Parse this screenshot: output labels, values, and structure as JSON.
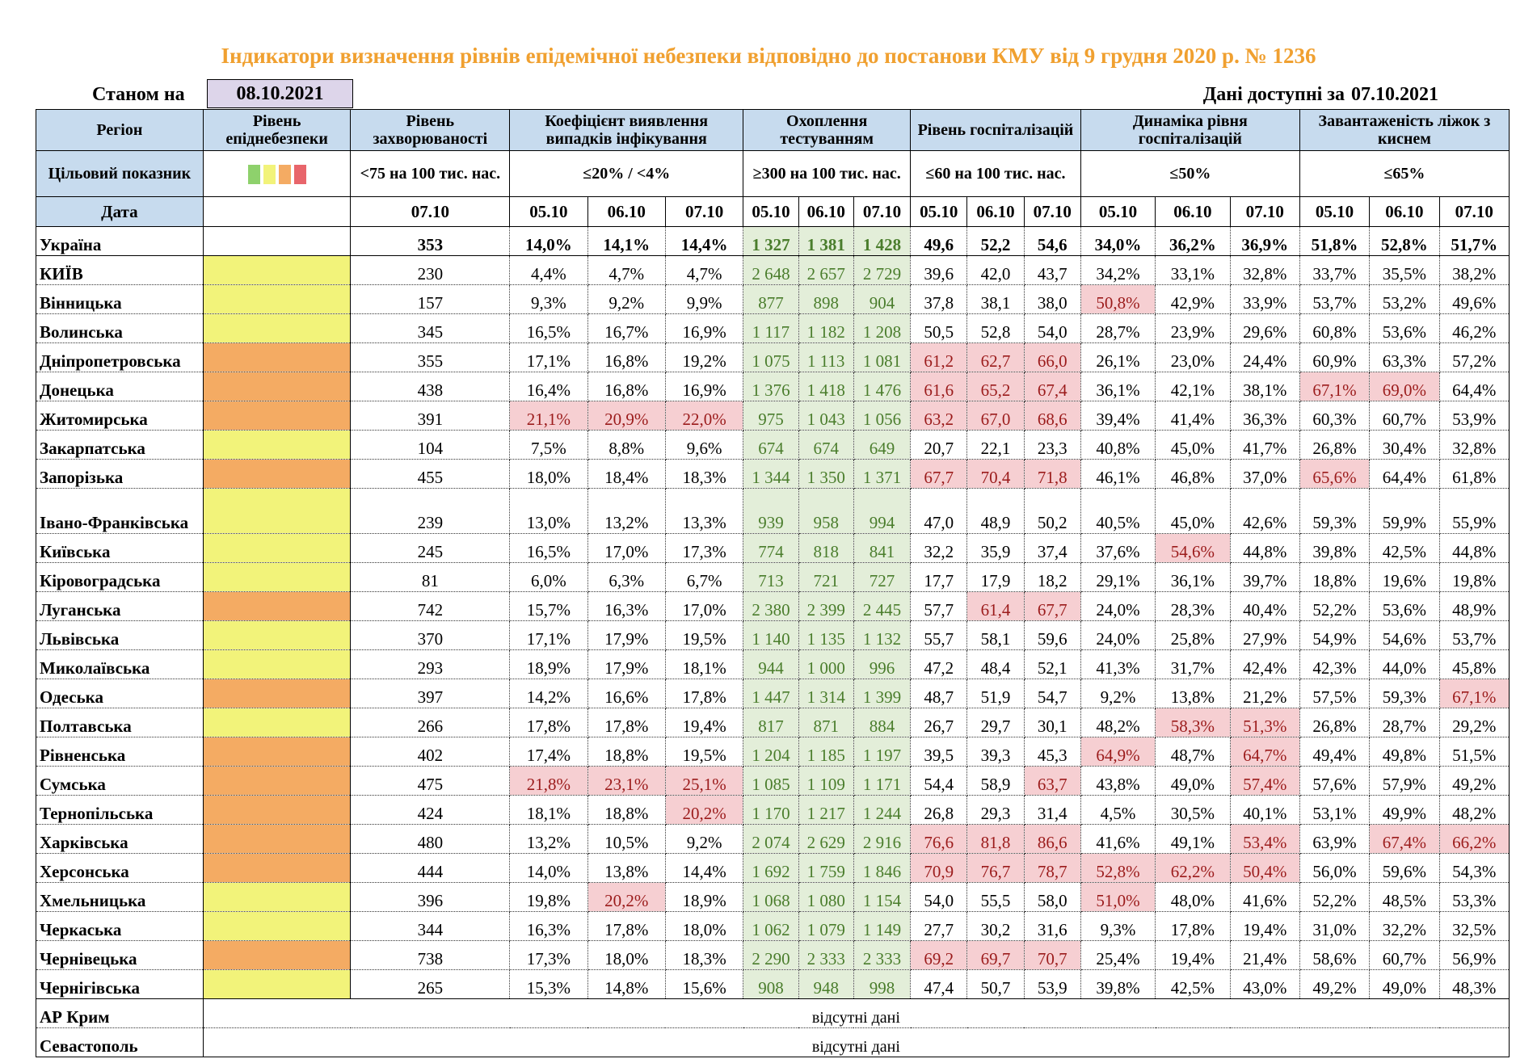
{
  "title": "Індикатори визначення рівнів епідемічної небезпеки відповідно до постанови КМУ від 9 грудня 2020 р. № 1236",
  "as_of_label": "Станом на",
  "as_of_date": "08.10.2021",
  "available_label": "Дані доступні за",
  "available_date": "07.10.2021",
  "headers": {
    "region": "Регіон",
    "level": "Рівень епіднебезпеки",
    "incidence": "Рівень захворюваності",
    "detection": "Коефіцієнт виявлення випадків інфікування",
    "testing": "Охоплення тестуванням",
    "hosp": "Рівень госпіталізацій",
    "hosp_dyn": "Динаміка рівня госпіталізацій",
    "oxygen": "Завантаженість ліжок з киснем"
  },
  "target_row": {
    "label": "Цільовий показник",
    "incidence": "<75 на 100 тис. нас.",
    "detection": "≤20% / <4%",
    "testing": "≥300 на 100 тис. нас.",
    "hosp": "≤60 на 100 тис. нас.",
    "hosp_dyn": "≤50%",
    "oxygen": "≤65%"
  },
  "legend_colors": [
    "#8ed16c",
    "#f2f37a",
    "#f4ab63",
    "#e8656b"
  ],
  "date_row": {
    "label": "Дата",
    "incidence": "07.10",
    "dates": [
      "05.10",
      "06.10",
      "07.10"
    ]
  },
  "ukraine": {
    "name": "Україна",
    "incidence": "353",
    "detection": [
      "14,0%",
      "14,1%",
      "14,4%"
    ],
    "testing": [
      "1 327",
      "1 381",
      "1 428"
    ],
    "hosp": [
      "49,6",
      "52,2",
      "54,6"
    ],
    "hosp_dyn": [
      "34,0%",
      "36,2%",
      "36,9%"
    ],
    "oxygen": [
      "51,8%",
      "52,8%",
      "51,7%"
    ]
  },
  "regions": [
    {
      "name": "КИЇВ",
      "level": "yellow",
      "incidence": "230",
      "detection": [
        "4,4%",
        "4,7%",
        "4,7%"
      ],
      "testing": [
        "2 648",
        "2 657",
        "2 729"
      ],
      "hosp": [
        "39,6",
        "42,0",
        "43,7"
      ],
      "hosp_dyn": [
        "34,2%",
        "33,1%",
        "32,8%"
      ],
      "oxygen": [
        "33,7%",
        "35,5%",
        "38,2%"
      ],
      "red": []
    },
    {
      "name": "Вінницька",
      "level": "yellow",
      "incidence": "157",
      "detection": [
        "9,3%",
        "9,2%",
        "9,9%"
      ],
      "testing": [
        "877",
        "898",
        "904"
      ],
      "hosp": [
        "37,8",
        "38,1",
        "38,0"
      ],
      "hosp_dyn": [
        "50,8%",
        "42,9%",
        "33,9%"
      ],
      "oxygen": [
        "53,7%",
        "53,2%",
        "49,6%"
      ],
      "red": [
        "hosp_dyn.0"
      ]
    },
    {
      "name": "Волинська",
      "level": "yellow",
      "incidence": "345",
      "detection": [
        "16,5%",
        "16,7%",
        "16,9%"
      ],
      "testing": [
        "1 117",
        "1 182",
        "1 208"
      ],
      "hosp": [
        "50,5",
        "52,8",
        "54,0"
      ],
      "hosp_dyn": [
        "28,7%",
        "23,9%",
        "29,6%"
      ],
      "oxygen": [
        "60,8%",
        "53,6%",
        "46,2%"
      ],
      "red": []
    },
    {
      "name": "Дніпропетровська",
      "level": "orange",
      "incidence": "355",
      "detection": [
        "17,1%",
        "16,8%",
        "19,2%"
      ],
      "testing": [
        "1 075",
        "1 113",
        "1 081"
      ],
      "hosp": [
        "61,2",
        "62,7",
        "66,0"
      ],
      "hosp_dyn": [
        "26,1%",
        "23,0%",
        "24,4%"
      ],
      "oxygen": [
        "60,9%",
        "63,3%",
        "57,2%"
      ],
      "red": [
        "hosp.0",
        "hosp.1",
        "hosp.2"
      ]
    },
    {
      "name": "Донецька",
      "level": "orange",
      "incidence": "438",
      "detection": [
        "16,4%",
        "16,8%",
        "16,9%"
      ],
      "testing": [
        "1 376",
        "1 418",
        "1 476"
      ],
      "hosp": [
        "61,6",
        "65,2",
        "67,4"
      ],
      "hosp_dyn": [
        "36,1%",
        "42,1%",
        "38,1%"
      ],
      "oxygen": [
        "67,1%",
        "69,0%",
        "64,4%"
      ],
      "red": [
        "hosp.0",
        "hosp.1",
        "hosp.2",
        "oxygen.0",
        "oxygen.1"
      ]
    },
    {
      "name": "Житомирська",
      "level": "orange",
      "incidence": "391",
      "detection": [
        "21,1%",
        "20,9%",
        "22,0%"
      ],
      "testing": [
        "975",
        "1 043",
        "1 056"
      ],
      "hosp": [
        "63,2",
        "67,0",
        "68,6"
      ],
      "hosp_dyn": [
        "39,4%",
        "41,4%",
        "36,3%"
      ],
      "oxygen": [
        "60,3%",
        "60,7%",
        "53,9%"
      ],
      "red": [
        "detection.0",
        "detection.1",
        "detection.2",
        "hosp.0",
        "hosp.1",
        "hosp.2"
      ]
    },
    {
      "name": "Закарпатська",
      "level": "yellow",
      "incidence": "104",
      "detection": [
        "7,5%",
        "8,8%",
        "9,6%"
      ],
      "testing": [
        "674",
        "674",
        "649"
      ],
      "hosp": [
        "20,7",
        "22,1",
        "23,3"
      ],
      "hosp_dyn": [
        "40,8%",
        "45,0%",
        "41,7%"
      ],
      "oxygen": [
        "26,8%",
        "30,4%",
        "32,8%"
      ],
      "red": []
    },
    {
      "name": "Запорізька",
      "level": "orange",
      "incidence": "455",
      "detection": [
        "18,0%",
        "18,4%",
        "18,3%"
      ],
      "testing": [
        "1 344",
        "1 350",
        "1 371"
      ],
      "hosp": [
        "67,7",
        "70,4",
        "71,8"
      ],
      "hosp_dyn": [
        "46,1%",
        "46,8%",
        "37,0%"
      ],
      "oxygen": [
        "65,6%",
        "64,4%",
        "61,8%"
      ],
      "red": [
        "hosp.0",
        "hosp.1",
        "hosp.2",
        "oxygen.0"
      ]
    },
    {
      "name": "Івано-Франківська",
      "level": "yellow",
      "incidence": "239",
      "detection": [
        "13,0%",
        "13,2%",
        "13,3%"
      ],
      "testing": [
        "939",
        "958",
        "994"
      ],
      "hosp": [
        "47,0",
        "48,9",
        "50,2"
      ],
      "hosp_dyn": [
        "40,5%",
        "45,0%",
        "42,6%"
      ],
      "oxygen": [
        "59,3%",
        "59,9%",
        "55,9%"
      ],
      "red": [],
      "tall": true
    },
    {
      "name": "Київська",
      "level": "yellow",
      "incidence": "245",
      "detection": [
        "16,5%",
        "17,0%",
        "17,3%"
      ],
      "testing": [
        "774",
        "818",
        "841"
      ],
      "hosp": [
        "32,2",
        "35,9",
        "37,4"
      ],
      "hosp_dyn": [
        "37,6%",
        "54,6%",
        "44,8%"
      ],
      "oxygen": [
        "39,8%",
        "42,5%",
        "44,8%"
      ],
      "red": [
        "hosp_dyn.1"
      ]
    },
    {
      "name": "Кіровоградська",
      "level": "yellow",
      "incidence": "81",
      "detection": [
        "6,0%",
        "6,3%",
        "6,7%"
      ],
      "testing": [
        "713",
        "721",
        "727"
      ],
      "hosp": [
        "17,7",
        "17,9",
        "18,2"
      ],
      "hosp_dyn": [
        "29,1%",
        "36,1%",
        "39,7%"
      ],
      "oxygen": [
        "18,8%",
        "19,6%",
        "19,8%"
      ],
      "red": []
    },
    {
      "name": "Луганська",
      "level": "orange",
      "incidence": "742",
      "detection": [
        "15,7%",
        "16,3%",
        "17,0%"
      ],
      "testing": [
        "2 380",
        "2 399",
        "2 445"
      ],
      "hosp": [
        "57,7",
        "61,4",
        "67,7"
      ],
      "hosp_dyn": [
        "24,0%",
        "28,3%",
        "40,4%"
      ],
      "oxygen": [
        "52,2%",
        "53,6%",
        "48,9%"
      ],
      "red": [
        "hosp.1",
        "hosp.2"
      ]
    },
    {
      "name": "Львівська",
      "level": "yellow",
      "incidence": "370",
      "detection": [
        "17,1%",
        "17,9%",
        "19,5%"
      ],
      "testing": [
        "1 140",
        "1 135",
        "1 132"
      ],
      "hosp": [
        "55,7",
        "58,1",
        "59,6"
      ],
      "hosp_dyn": [
        "24,0%",
        "25,8%",
        "27,9%"
      ],
      "oxygen": [
        "54,9%",
        "54,6%",
        "53,7%"
      ],
      "red": []
    },
    {
      "name": "Миколаївська",
      "level": "yellow",
      "incidence": "293",
      "detection": [
        "18,9%",
        "17,9%",
        "18,1%"
      ],
      "testing": [
        "944",
        "1 000",
        "996"
      ],
      "hosp": [
        "47,2",
        "48,4",
        "52,1"
      ],
      "hosp_dyn": [
        "41,3%",
        "31,7%",
        "42,4%"
      ],
      "oxygen": [
        "42,3%",
        "44,0%",
        "45,8%"
      ],
      "red": []
    },
    {
      "name": "Одеська",
      "level": "orange",
      "incidence": "397",
      "detection": [
        "14,2%",
        "16,6%",
        "17,8%"
      ],
      "testing": [
        "1 447",
        "1 314",
        "1 399"
      ],
      "hosp": [
        "48,7",
        "51,9",
        "54,7"
      ],
      "hosp_dyn": [
        "9,2%",
        "13,8%",
        "21,2%"
      ],
      "oxygen": [
        "57,5%",
        "59,3%",
        "67,1%"
      ],
      "red": [
        "oxygen.2"
      ]
    },
    {
      "name": "Полтавська",
      "level": "yellow",
      "incidence": "266",
      "detection": [
        "17,8%",
        "17,8%",
        "19,4%"
      ],
      "testing": [
        "817",
        "871",
        "884"
      ],
      "hosp": [
        "26,7",
        "29,7",
        "30,1"
      ],
      "hosp_dyn": [
        "48,2%",
        "58,3%",
        "51,3%"
      ],
      "oxygen": [
        "26,8%",
        "28,7%",
        "29,2%"
      ],
      "red": [
        "hosp_dyn.1",
        "hosp_dyn.2"
      ]
    },
    {
      "name": "Рівненська",
      "level": "orange",
      "incidence": "402",
      "detection": [
        "17,4%",
        "18,8%",
        "19,5%"
      ],
      "testing": [
        "1 204",
        "1 185",
        "1 197"
      ],
      "hosp": [
        "39,5",
        "39,3",
        "45,3"
      ],
      "hosp_dyn": [
        "64,9%",
        "48,7%",
        "64,7%"
      ],
      "oxygen": [
        "49,4%",
        "49,8%",
        "51,5%"
      ],
      "red": [
        "hosp_dyn.0",
        "hosp_dyn.2"
      ]
    },
    {
      "name": "Сумська",
      "level": "orange",
      "incidence": "475",
      "detection": [
        "21,8%",
        "23,1%",
        "25,1%"
      ],
      "testing": [
        "1 085",
        "1 109",
        "1 171"
      ],
      "hosp": [
        "54,4",
        "58,9",
        "63,7"
      ],
      "hosp_dyn": [
        "43,8%",
        "49,0%",
        "57,4%"
      ],
      "oxygen": [
        "57,6%",
        "57,9%",
        "49,2%"
      ],
      "red": [
        "detection.0",
        "detection.1",
        "detection.2",
        "hosp.2",
        "hosp_dyn.2"
      ]
    },
    {
      "name": "Тернопільська",
      "level": "orange",
      "incidence": "424",
      "detection": [
        "18,1%",
        "18,8%",
        "20,2%"
      ],
      "testing": [
        "1 170",
        "1 217",
        "1 244"
      ],
      "hosp": [
        "26,8",
        "29,3",
        "31,4"
      ],
      "hosp_dyn": [
        "4,5%",
        "30,5%",
        "40,1%"
      ],
      "oxygen": [
        "53,1%",
        "49,9%",
        "48,2%"
      ],
      "red": [
        "detection.2"
      ]
    },
    {
      "name": "Харківська",
      "level": "orange",
      "incidence": "480",
      "detection": [
        "13,2%",
        "10,5%",
        "9,2%"
      ],
      "testing": [
        "2 074",
        "2 629",
        "2 916"
      ],
      "hosp": [
        "76,6",
        "81,8",
        "86,6"
      ],
      "hosp_dyn": [
        "41,6%",
        "49,1%",
        "53,4%"
      ],
      "oxygen": [
        "63,9%",
        "67,4%",
        "66,2%"
      ],
      "red": [
        "hosp.0",
        "hosp.1",
        "hosp.2",
        "hosp_dyn.2",
        "oxygen.1",
        "oxygen.2"
      ]
    },
    {
      "name": "Херсонська",
      "level": "orange",
      "incidence": "444",
      "detection": [
        "14,0%",
        "13,8%",
        "14,4%"
      ],
      "testing": [
        "1 692",
        "1 759",
        "1 846"
      ],
      "hosp": [
        "70,9",
        "76,7",
        "78,7"
      ],
      "hosp_dyn": [
        "52,8%",
        "62,2%",
        "50,4%"
      ],
      "oxygen": [
        "56,0%",
        "59,6%",
        "54,3%"
      ],
      "red": [
        "hosp.0",
        "hosp.1",
        "hosp.2",
        "hosp_dyn.0",
        "hosp_dyn.1",
        "hosp_dyn.2"
      ]
    },
    {
      "name": "Хмельницька",
      "level": "yellow",
      "incidence": "396",
      "detection": [
        "19,8%",
        "20,2%",
        "18,9%"
      ],
      "testing": [
        "1 068",
        "1 080",
        "1 154"
      ],
      "hosp": [
        "54,0",
        "55,5",
        "58,0"
      ],
      "hosp_dyn": [
        "51,0%",
        "48,0%",
        "41,6%"
      ],
      "oxygen": [
        "52,2%",
        "48,5%",
        "53,3%"
      ],
      "red": [
        "detection.1",
        "hosp_dyn.0"
      ]
    },
    {
      "name": "Черкаська",
      "level": "yellow",
      "incidence": "344",
      "detection": [
        "16,3%",
        "17,8%",
        "18,0%"
      ],
      "testing": [
        "1 062",
        "1 079",
        "1 149"
      ],
      "hosp": [
        "27,7",
        "30,2",
        "31,6"
      ],
      "hosp_dyn": [
        "9,3%",
        "17,8%",
        "19,4%"
      ],
      "oxygen": [
        "31,0%",
        "32,2%",
        "32,5%"
      ],
      "red": []
    },
    {
      "name": "Чернівецька",
      "level": "orange",
      "incidence": "738",
      "detection": [
        "17,3%",
        "18,0%",
        "18,3%"
      ],
      "testing": [
        "2 290",
        "2 333",
        "2 333"
      ],
      "hosp": [
        "69,2",
        "69,7",
        "70,7"
      ],
      "hosp_dyn": [
        "25,4%",
        "19,4%",
        "21,4%"
      ],
      "oxygen": [
        "58,6%",
        "60,7%",
        "56,9%"
      ],
      "red": [
        "hosp.0",
        "hosp.1",
        "hosp.2"
      ]
    },
    {
      "name": "Чернігівська",
      "level": "yellow",
      "incidence": "265",
      "detection": [
        "15,3%",
        "14,8%",
        "15,6%"
      ],
      "testing": [
        "908",
        "948",
        "998"
      ],
      "hosp": [
        "47,4",
        "50,7",
        "53,9"
      ],
      "hosp_dyn": [
        "39,8%",
        "42,5%",
        "43,0%"
      ],
      "oxygen": [
        "49,2%",
        "49,0%",
        "48,3%"
      ],
      "red": []
    }
  ],
  "no_data_regions": [
    {
      "name": "АР Крим",
      "text": "відсутні дані"
    },
    {
      "name": "Севастополь",
      "text": "відсутні дані"
    }
  ],
  "colors": {
    "yellow": "#f2f37a",
    "orange": "#f4ab63",
    "green_fill": "#e3eed9",
    "red_fill": "#f6cfd2",
    "header_blue": "#c7dbee",
    "title_orange": "#f0a030"
  }
}
